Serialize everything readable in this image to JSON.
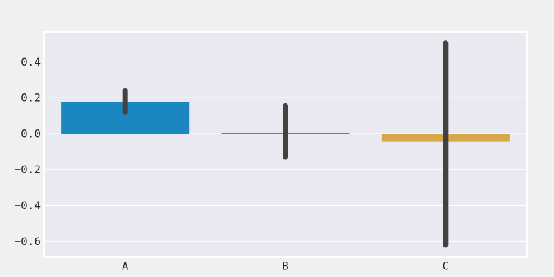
{
  "chart_data": {
    "type": "bar",
    "title": "",
    "xlabel": "",
    "ylabel": "",
    "categories": [
      "A",
      "B",
      "C"
    ],
    "values": [
      0.175,
      0.005,
      -0.045
    ],
    "error_bars": [
      {
        "low": 0.12,
        "high": 0.24
      },
      {
        "low": -0.13,
        "high": 0.155
      },
      {
        "low": -0.62,
        "high": 0.505
      }
    ],
    "colors": [
      "#1a87c0",
      "#e8543a",
      "#d8a74a"
    ],
    "error_bar_color": "#424242",
    "ylim": [
      -0.68,
      0.56
    ],
    "yticks": [
      0.4,
      0.2,
      0.0,
      -0.2,
      -0.4,
      -0.6
    ],
    "ytick_labels": [
      "0.4",
      "0.2",
      "0.0",
      "−0.2",
      "−0.4",
      "−0.6"
    ],
    "grid": true,
    "plot_background": "#e9e9f1",
    "figure_background": "#f0f0f0"
  }
}
